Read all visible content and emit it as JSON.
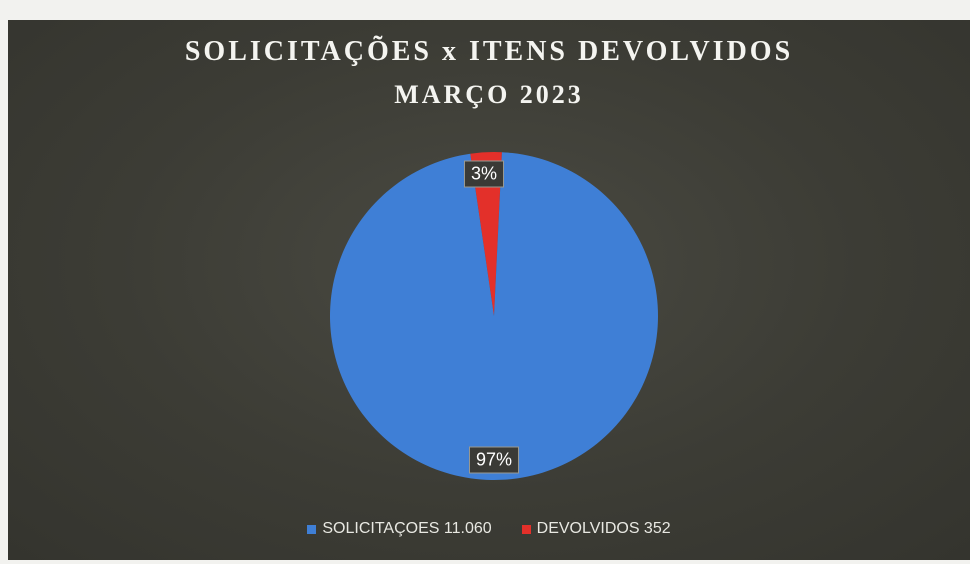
{
  "chart_data": {
    "type": "pie",
    "title": "SOLICITAÇÕES x ITENS DEVOLVIDOS",
    "subtitle": "MARÇO 2023",
    "slices": [
      {
        "label": "SOLICITAÇOES 11.060",
        "value": 11060,
        "percent_label": "97%",
        "color": "#3f7fd6"
      },
      {
        "label": "DEVOLVIDOS 352",
        "value": 352,
        "percent_label": "3%",
        "color": "#e3302a"
      }
    ],
    "legend_position": "bottom"
  }
}
